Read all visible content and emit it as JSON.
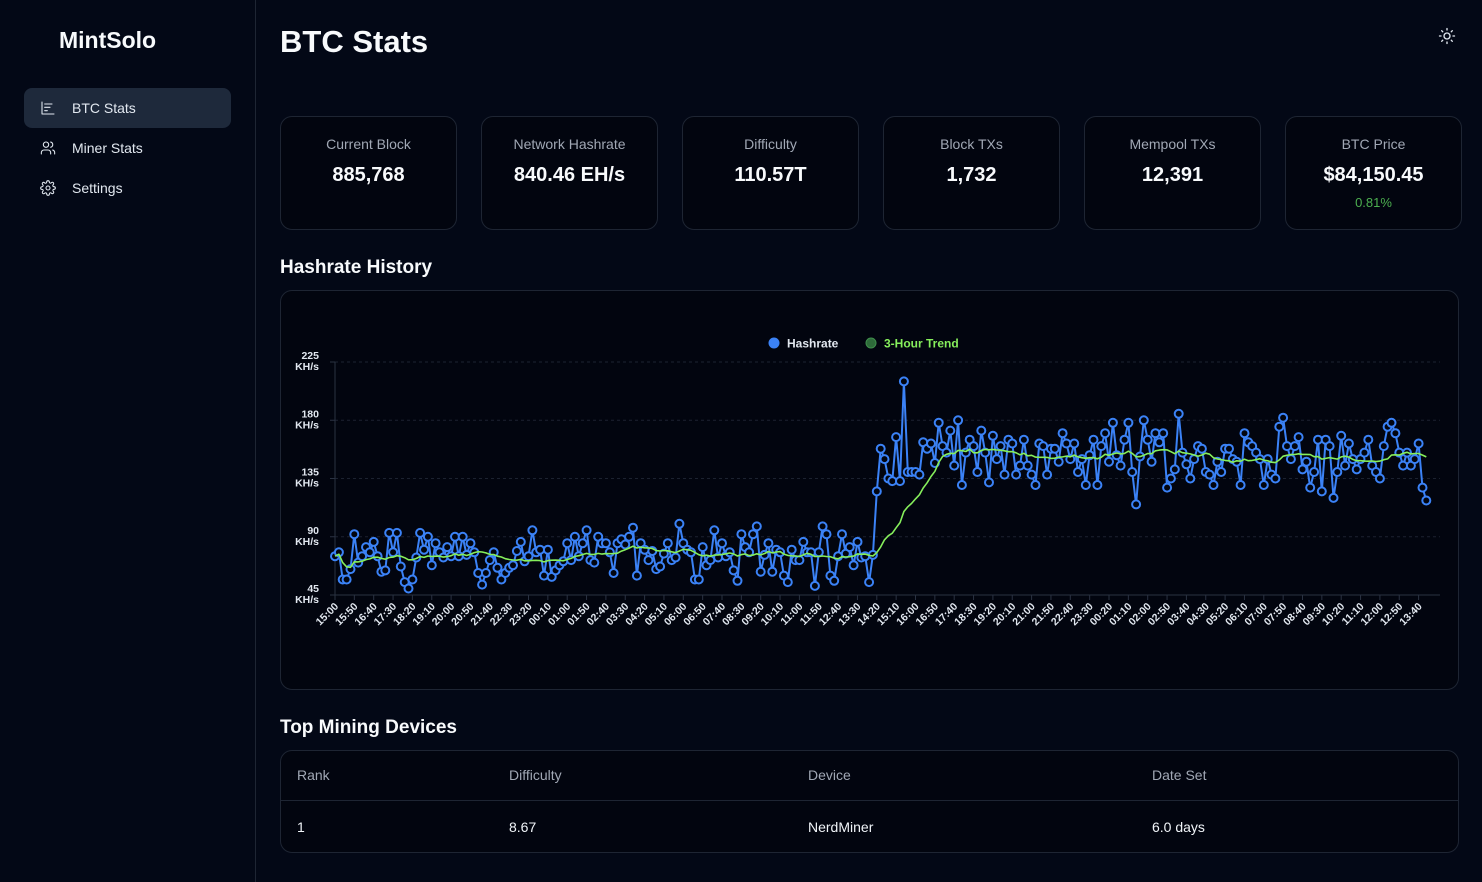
{
  "app": {
    "brand": "MintSolo"
  },
  "sidebar": {
    "items": [
      {
        "label": "BTC Stats",
        "icon": "bar-chart-icon",
        "active": true
      },
      {
        "label": "Miner Stats",
        "icon": "users-icon",
        "active": false
      },
      {
        "label": "Settings",
        "icon": "gear-icon",
        "active": false
      }
    ]
  },
  "header": {
    "title": "BTC Stats",
    "theme_toggle_icon": "sun-icon"
  },
  "stats": [
    {
      "label": "Current Block",
      "value": "885,768"
    },
    {
      "label": "Network Hashrate",
      "value": "840.46 EH/s"
    },
    {
      "label": "Difficulty",
      "value": "110.57T"
    },
    {
      "label": "Block TXs",
      "value": "1,732"
    },
    {
      "label": "Mempool TXs",
      "value": "12,391"
    },
    {
      "label": "BTC Price",
      "value": "$84,150.45",
      "change": "0.81%"
    }
  ],
  "colors": {
    "hashrate": "#3b82f6",
    "trend": "#86ef5c",
    "positive": "#4caf50"
  },
  "hashrate_section": {
    "title": "Hashrate History"
  },
  "chart_data": {
    "type": "line",
    "title": "Hashrate History",
    "xlabel": "",
    "ylabel": "",
    "ylim": [
      45,
      225
    ],
    "yticks": [
      "45 KH/s",
      "90 KH/s",
      "135 KH/s",
      "180 KH/s",
      "225 KH/s"
    ],
    "ytick_values": [
      45,
      90,
      135,
      180,
      225
    ],
    "y_unit": "KH/s",
    "grid": true,
    "legend": "top-center",
    "x_interval_minutes": 10,
    "x_start": "15:00",
    "xtick_every": 5,
    "xtick_labels": [
      "15:00",
      "15:50",
      "16:40",
      "17:30",
      "18:20",
      "19:10",
      "20:00",
      "20:50",
      "21:40",
      "22:30",
      "23:20",
      "00:10",
      "01:00",
      "01:50",
      "02:40",
      "03:30",
      "04:20",
      "05:10",
      "06:00",
      "06:50",
      "07:40",
      "08:30",
      "09:20",
      "10:10",
      "11:00",
      "11:50",
      "12:40",
      "13:30",
      "14:20",
      "15:10",
      "16:00",
      "16:50",
      "17:40",
      "18:30",
      "19:20",
      "20:10",
      "21:00",
      "21:50",
      "22:40",
      "23:30",
      "00:20",
      "01:10",
      "02:00",
      "02:50",
      "03:40",
      "04:30",
      "05:20",
      "06:10",
      "07:00",
      "07:50",
      "08:40",
      "09:30",
      "10:20",
      "11:10",
      "12:00",
      "12:50",
      "13:40"
    ],
    "series": [
      {
        "name": "Hashrate",
        "values": [
          75,
          78,
          57,
          57,
          65,
          92,
          70,
          75,
          82,
          78,
          86,
          75,
          63,
          64,
          93,
          78,
          93,
          67,
          55,
          50,
          57,
          74,
          93,
          80,
          90,
          68,
          85,
          78,
          74,
          82,
          75,
          90,
          75,
          90,
          76,
          85,
          78,
          62,
          53,
          62,
          72,
          78,
          66,
          57,
          62,
          66,
          68,
          79,
          86,
          71,
          75,
          95,
          78,
          80,
          60,
          80,
          59,
          64,
          68,
          71,
          85,
          72,
          90,
          75,
          85,
          95,
          72,
          70,
          90,
          85,
          85,
          78,
          62,
          85,
          88,
          84,
          90,
          97,
          60,
          85,
          80,
          72,
          79,
          65,
          67,
          77,
          85,
          72,
          74,
          100,
          85,
          80,
          78,
          57,
          57,
          82,
          68,
          72,
          95,
          74,
          85,
          75,
          78,
          64,
          56,
          92,
          82,
          78,
          92,
          98,
          63,
          76,
          85,
          63,
          80,
          78,
          60,
          55,
          80,
          72,
          72,
          86,
          78,
          78,
          52,
          78,
          98,
          92,
          60,
          56,
          75,
          92,
          77,
          82,
          68,
          86,
          74,
          75,
          55,
          76,
          125,
          158,
          150,
          135,
          133,
          167,
          133,
          210,
          140,
          140,
          140,
          138,
          163,
          158,
          162,
          147,
          178,
          160,
          155,
          172,
          145,
          180,
          130,
          155,
          165,
          160,
          140,
          172,
          155,
          132,
          168,
          150,
          160,
          138,
          165,
          162,
          138,
          145,
          165,
          145,
          138,
          130,
          162,
          160,
          138,
          158,
          158,
          148,
          170,
          162,
          150,
          162,
          140,
          150,
          130,
          153,
          165,
          130,
          160,
          170,
          148,
          178,
          153,
          145,
          165,
          178,
          140,
          115,
          152,
          180,
          165,
          148,
          170,
          163,
          170,
          128,
          135,
          142,
          185,
          155,
          146,
          135,
          150,
          160,
          158,
          140,
          138,
          130,
          148,
          140,
          158,
          158,
          150,
          148,
          130,
          170,
          163,
          160,
          155,
          150,
          130,
          150,
          138,
          135,
          175,
          182,
          160,
          150,
          160,
          167,
          142,
          148,
          128,
          140,
          165,
          125,
          165,
          160,
          120,
          140,
          168,
          145,
          162,
          150,
          142,
          150,
          155,
          165,
          145,
          140,
          135,
          160,
          175,
          178,
          170,
          155,
          145,
          155,
          145,
          150,
          162,
          128,
          118
        ]
      },
      {
        "name": "3-Hour Trend",
        "window_points": 18
      }
    ]
  },
  "devices_section": {
    "title": "Top Mining Devices",
    "columns": [
      "Rank",
      "Difficulty",
      "Device",
      "Date Set"
    ],
    "rows": [
      {
        "rank": "1",
        "difficulty": "8.67",
        "device": "NerdMiner",
        "date_set": "6.0 days"
      }
    ]
  }
}
